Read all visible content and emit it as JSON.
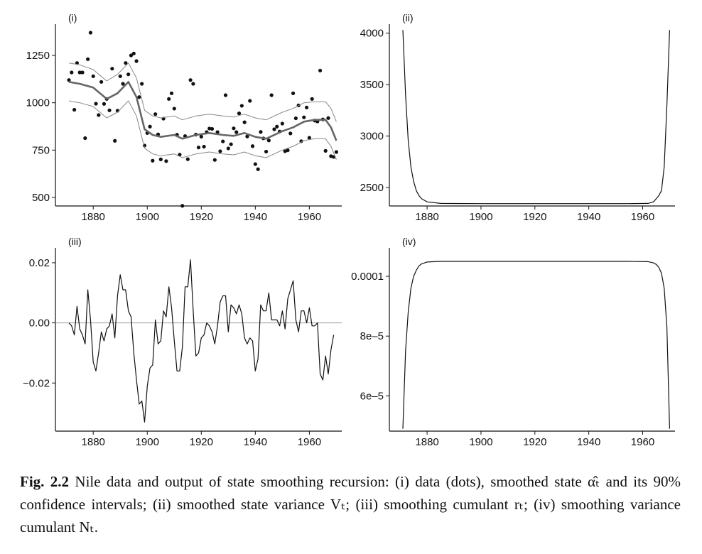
{
  "figure": {
    "caption_number": "Fig. 2.2",
    "caption_text": "Nile data and output of state smoothing recursion: (i) data (dots), smoothed state α̂ₜ and its 90% confidence intervals; (ii) smoothed state variance Vₜ; (iii) smoothing cumulant rₜ; (iv) smoothing variance cumulant Nₜ."
  },
  "colors": {
    "data_dots": "#111111",
    "smoothed": "#666666",
    "bands": "#888888",
    "line": "#111111",
    "zero": "#999999"
  },
  "chart_data": [
    {
      "type": "scatter",
      "panel_label": "(i)",
      "title": "",
      "xlabel": "",
      "ylabel": "",
      "xlim": [
        1866,
        1972
      ],
      "ylim": [
        455,
        1400
      ],
      "x_ticks": [
        1880,
        1900,
        1920,
        1940,
        1960
      ],
      "y_ticks": [
        500,
        750,
        1000,
        1250
      ],
      "series": [
        {
          "kind": "points",
          "x_start": 1871,
          "values": [
            1120,
            1160,
            963,
            1210,
            1160,
            1160,
            813,
            1230,
            1370,
            1140,
            995,
            935,
            1110,
            994,
            1020,
            960,
            1180,
            799,
            958,
            1140,
            1100,
            1210,
            1150,
            1250,
            1260,
            1220,
            1030,
            1100,
            774,
            840,
            874,
            694,
            940,
            833,
            701,
            916,
            692,
            1020,
            1050,
            969,
            831,
            726,
            456,
            824,
            702,
            1120,
            1100,
            832,
            764,
            821,
            768,
            845,
            864,
            862,
            698,
            845,
            744,
            796,
            1040,
            759,
            781,
            865,
            845,
            944,
            984,
            897,
            822,
            1010,
            771,
            676,
            649,
            846,
            812,
            742,
            801,
            1040,
            860,
            874,
            848,
            890,
            744,
            749,
            838,
            1050,
            918,
            986,
            797,
            923,
            975,
            815,
            1020,
            906,
            901,
            1170,
            912,
            746,
            919,
            718,
            714,
            740
          ]
        },
        {
          "kind": "smoothed",
          "x": [
            1871,
            1875,
            1880,
            1885,
            1889,
            1893,
            1896,
            1899,
            1902,
            1905,
            1910,
            1913,
            1918,
            1923,
            1928,
            1932,
            1936,
            1940,
            1944,
            1950,
            1954,
            1958,
            1962,
            1966,
            1968,
            1970
          ],
          "values": [
            1110,
            1100,
            1080,
            1020,
            1050,
            1110,
            1030,
            860,
            830,
            820,
            830,
            810,
            830,
            840,
            830,
            825,
            840,
            820,
            810,
            850,
            870,
            900,
            910,
            910,
            870,
            800
          ]
        },
        {
          "kind": "upper",
          "x": [
            1871,
            1875,
            1880,
            1885,
            1889,
            1893,
            1896,
            1899,
            1902,
            1905,
            1910,
            1913,
            1918,
            1923,
            1928,
            1932,
            1936,
            1940,
            1944,
            1950,
            1954,
            1958,
            1962,
            1966,
            1968,
            1970
          ],
          "values": [
            1210,
            1200,
            1175,
            1115,
            1150,
            1210,
            1130,
            960,
            930,
            920,
            930,
            910,
            930,
            940,
            930,
            925,
            940,
            920,
            910,
            950,
            970,
            1000,
            1005,
            1005,
            970,
            900
          ]
        },
        {
          "kind": "lower",
          "x": [
            1871,
            1875,
            1880,
            1885,
            1889,
            1893,
            1896,
            1899,
            1902,
            1905,
            1910,
            1913,
            1918,
            1923,
            1928,
            1932,
            1936,
            1940,
            1944,
            1950,
            1954,
            1958,
            1962,
            1966,
            1968,
            1970
          ],
          "values": [
            1010,
            1000,
            980,
            920,
            950,
            1010,
            930,
            760,
            730,
            720,
            730,
            710,
            730,
            740,
            730,
            725,
            740,
            720,
            710,
            750,
            770,
            800,
            810,
            810,
            770,
            700
          ]
        }
      ]
    },
    {
      "type": "line",
      "panel_label": "(ii)",
      "title": "",
      "xlabel": "",
      "ylabel": "",
      "xlim": [
        1866,
        1972
      ],
      "ylim": [
        2320,
        4060
      ],
      "x_ticks": [
        1880,
        1900,
        1920,
        1940,
        1960
      ],
      "y_ticks": [
        2500,
        3000,
        3500,
        4000
      ],
      "series": [
        {
          "x": [
            1871,
            1872,
            1873,
            1874,
            1875,
            1876,
            1877,
            1878,
            1880,
            1885,
            1900,
            1920,
            1940,
            1955,
            1962,
            1964,
            1965,
            1966,
            1967,
            1968,
            1969,
            1970
          ],
          "values": [
            4030,
            3400,
            2960,
            2700,
            2560,
            2470,
            2420,
            2390,
            2360,
            2345,
            2343,
            2343,
            2343,
            2343,
            2345,
            2360,
            2390,
            2420,
            2470,
            2700,
            3300,
            4030
          ]
        }
      ]
    },
    {
      "type": "line",
      "panel_label": "(iii)",
      "title": "",
      "xlabel": "",
      "ylabel": "",
      "xlim": [
        1866,
        1972
      ],
      "ylim": [
        -0.036,
        0.024
      ],
      "x_ticks": [
        1880,
        1900,
        1920,
        1940,
        1960
      ],
      "y_ticks": [
        -0.02,
        0.0,
        0.02
      ],
      "zero_line": true,
      "series": [
        {
          "x_start": 1871,
          "values": [
            0,
            -0.001,
            -0.004,
            0.0055,
            -0.002,
            -0.004,
            -0.007,
            0.011,
            0.001,
            -0.013,
            -0.016,
            -0.01,
            -0.003,
            -0.006,
            -0.002,
            -0.001,
            0.003,
            -0.005,
            0.009,
            0.016,
            0.011,
            0.011,
            0.004,
            0.002,
            -0.01,
            -0.019,
            -0.027,
            -0.026,
            -0.033,
            -0.021,
            -0.015,
            -0.014,
            0.001,
            -0.007,
            -0.006,
            0.004,
            0.002,
            0.012,
            0.005,
            -0.006,
            -0.016,
            -0.016,
            -0.008,
            0.012,
            0.012,
            0.021,
            0.004,
            -0.011,
            -0.01,
            -0.005,
            -0.004,
            0.0,
            -0.001,
            -0.003,
            -0.007,
            -0.001,
            0.007,
            0.009,
            0.009,
            -0.003,
            0.006,
            0.005,
            0.003,
            0.006,
            0.003,
            -0.005,
            -0.007,
            -0.005,
            -0.006,
            -0.016,
            -0.012,
            0.006,
            0.004,
            0.004,
            0.01,
            0.001,
            0.001,
            0.001,
            -0.001,
            0.004,
            -0.002,
            0.008,
            0.011,
            0.014,
            0.001,
            -0.003,
            0.004,
            0.004,
            0.0,
            0.005,
            -0.001,
            -0.001,
            0.0,
            -0.017,
            -0.019,
            -0.011,
            -0.017,
            -0.009,
            -0.004
          ]
        }
      ]
    },
    {
      "type": "line",
      "panel_label": "(iv)",
      "title": "",
      "xlabel": "",
      "ylabel": "",
      "xlim": [
        1866,
        1972
      ],
      "ylim": [
        4.82e-05,
        0.00010857
      ],
      "x_ticks": [
        1880,
        1900,
        1920,
        1940,
        1960
      ],
      "y_ticks": [
        6e-05,
        8e-05,
        0.0001
      ],
      "y_tick_labels": [
        "6e–5",
        "8e–5",
        "0.0001"
      ],
      "series": [
        {
          "x": [
            1871,
            1872,
            1873,
            1874,
            1875,
            1876,
            1877,
            1878,
            1880,
            1885,
            1900,
            1920,
            1940,
            1955,
            1962,
            1964,
            1965,
            1966,
            1967,
            1968,
            1969,
            1970
          ],
          "values": [
            4.9e-05,
            7.5e-05,
            8.8e-05,
            9.6e-05,
            0.0001,
            0.000102,
            0.0001035,
            0.0001042,
            0.0001048,
            0.000105,
            0.000105,
            0.000105,
            0.000105,
            0.000105,
            0.0001049,
            0.0001045,
            0.000104,
            0.000103,
            0.000101,
            9.6e-05,
            8.3e-05,
            4.9e-05
          ]
        }
      ]
    }
  ]
}
